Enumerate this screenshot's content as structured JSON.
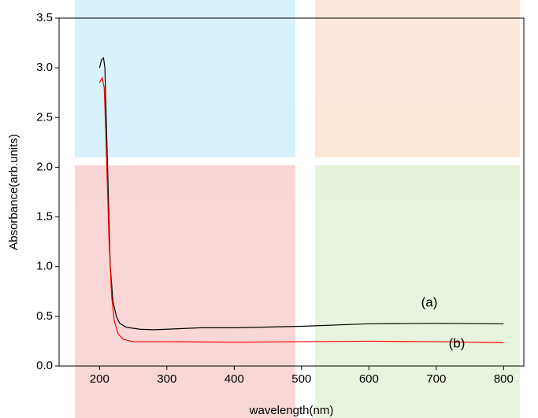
{
  "chart_data": {
    "type": "line",
    "x_label": "wavelength(nm)",
    "y_label": "Absorbance(arb.units)",
    "xlim": [
      140,
      830
    ],
    "ylim": [
      0,
      3.5
    ],
    "xticks": [
      200,
      300,
      400,
      500,
      600,
      700,
      800
    ],
    "yticks": [
      {
        "value": 0,
        "label": "0.0"
      },
      {
        "value": 0.5,
        "label": "0.5"
      },
      {
        "value": 1,
        "label": "1.0"
      },
      {
        "value": 1.5,
        "label": "1.5"
      },
      {
        "value": 2,
        "label": "2.0"
      },
      {
        "value": 2.5,
        "label": "2.5"
      },
      {
        "value": 3,
        "label": "3.0"
      },
      {
        "value": 3.5,
        "label": "3.5"
      }
    ],
    "grid": false,
    "series": [
      {
        "name": "(a)",
        "color": "#000000",
        "x": [
          200,
          203,
          206,
          208,
          212,
          216,
          220,
          225,
          230,
          240,
          260,
          280,
          300,
          350,
          400,
          500,
          600,
          700,
          800
        ],
        "values": [
          3.0,
          3.08,
          3.1,
          3.0,
          2.0,
          1.0,
          0.65,
          0.5,
          0.43,
          0.39,
          0.37,
          0.365,
          0.37,
          0.385,
          0.385,
          0.4,
          0.425,
          0.43,
          0.425
        ]
      },
      {
        "name": "(b)",
        "color": "#ff0000",
        "x": [
          200,
          204,
          207,
          210,
          214,
          218,
          222,
          228,
          235,
          250,
          300,
          400,
          500,
          600,
          700,
          800
        ],
        "values": [
          2.85,
          2.9,
          2.8,
          2.2,
          1.3,
          0.7,
          0.45,
          0.32,
          0.27,
          0.245,
          0.245,
          0.24,
          0.245,
          0.25,
          0.245,
          0.235
        ]
      }
    ]
  }
}
